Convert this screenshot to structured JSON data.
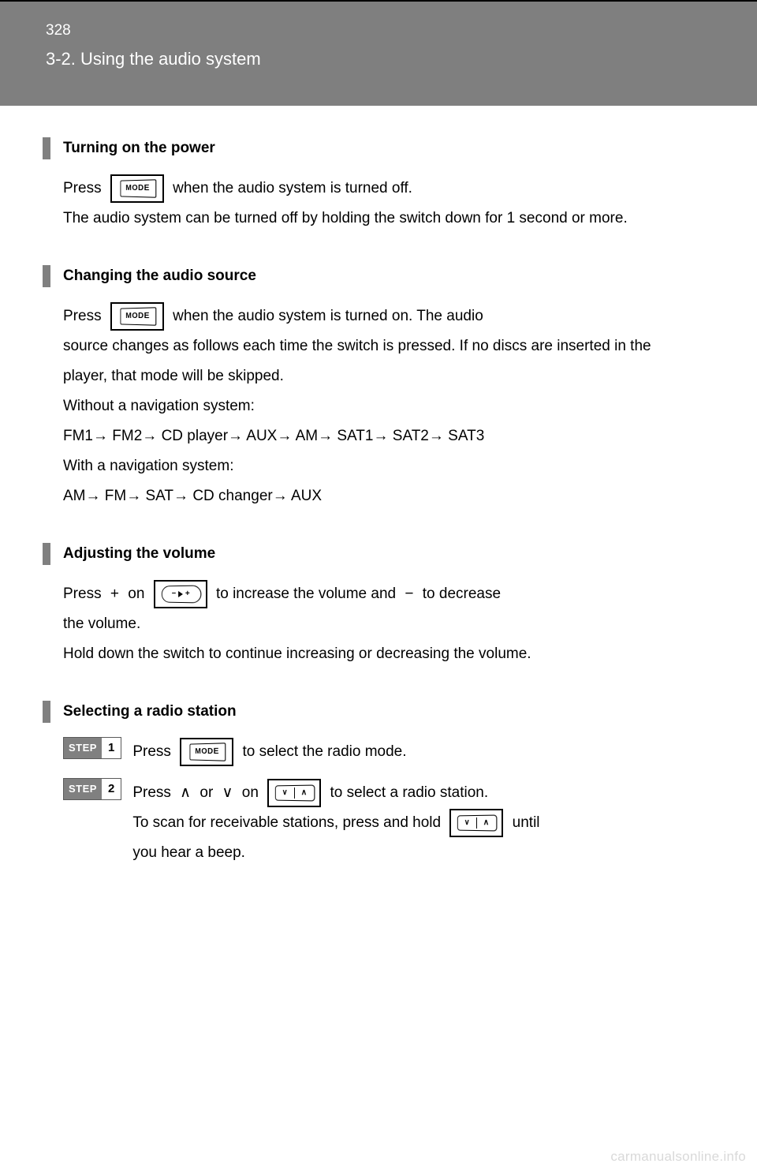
{
  "header": {
    "page_number": "328",
    "section_title": "3-2. Using the audio system"
  },
  "icons": {
    "mode_label": "MODE",
    "step_label": "STEP",
    "minus": "−",
    "plus": "+",
    "chev_down": "∨",
    "chev_up": "∧",
    "arrow": "→"
  },
  "blocks": [
    {
      "heading": "Turning on the power",
      "paras": [
        {
          "type": "mode-line",
          "pre": "Press ",
          "post": " when the audio system is turned off."
        },
        {
          "type": "plain",
          "text": "The audio system can be turned off by holding the switch down for 1 second or more."
        }
      ]
    },
    {
      "heading": "Changing the audio source",
      "paras": [
        {
          "type": "mode-line",
          "pre": "Press ",
          "post": " when the audio system is turned on. The audio"
        },
        {
          "type": "plain",
          "text": "source changes as follows each time the switch is pressed. If no discs are inserted in the player, that mode will be skipped."
        },
        {
          "type": "plain",
          "text": "Without a navigation system:"
        },
        {
          "type": "arrows",
          "items": [
            "FM1",
            "FM2",
            "CD player",
            "AUX",
            "AM",
            "SAT1",
            "SAT2",
            "SAT3"
          ]
        },
        {
          "type": "plain",
          "text": "With a navigation system:"
        },
        {
          "type": "arrows",
          "items": [
            "AM",
            "FM",
            "SAT",
            "CD changer",
            "AUX"
          ]
        }
      ]
    },
    {
      "heading": "Adjusting the volume",
      "paras": [
        {
          "type": "vol-line",
          "pre": "Press ",
          "mid1": " on ",
          "mid2": " to increase the volume and ",
          "post": " to decrease"
        },
        {
          "type": "plain",
          "text": "the volume."
        },
        {
          "type": "plain",
          "text": "Hold down the switch to continue increasing or decreasing the volume."
        }
      ]
    },
    {
      "heading": "Selecting a radio station",
      "steps": [
        {
          "num": "1",
          "type": "mode-step",
          "pre": "Press ",
          "post": " to select the radio mode."
        },
        {
          "num": "2",
          "type": "seek-step",
          "pre": "Press ",
          "chev": "up",
          "mid1": " or ",
          "chev2": "down",
          "mid2": " on ",
          "post": " to select a radio station.",
          "extra_pre": "To scan for receivable stations, press and hold ",
          "extra_post": " until",
          "extra_line2": "you hear a beep."
        }
      ]
    }
  ],
  "watermark": "carmanualsonline.info",
  "colors": {
    "header_bg": "#7f7f7f",
    "gray_bar": "#808080",
    "watermark": "#d9d9d9"
  }
}
